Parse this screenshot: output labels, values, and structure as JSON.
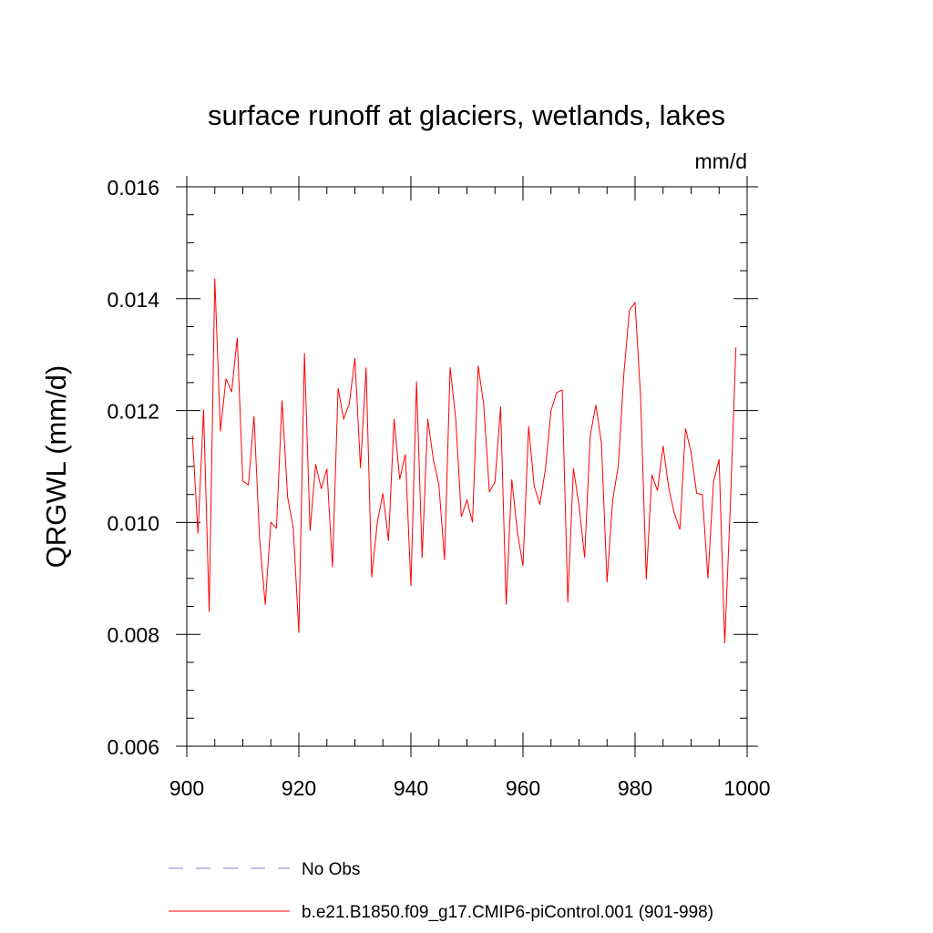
{
  "chart_data": {
    "type": "line",
    "title": "surface runoff at glaciers, wetlands, lakes",
    "units": "mm/d",
    "ylabel": "QRGWL  (mm/d)",
    "xlabel": "",
    "xlim": [
      900,
      1000
    ],
    "ylim": [
      0.006,
      0.016
    ],
    "x_ticks": [
      900,
      920,
      940,
      960,
      980,
      1000
    ],
    "x_tick_labels": [
      "900",
      "920",
      "940",
      "960",
      "980",
      "1000"
    ],
    "y_ticks": [
      0.006,
      0.008,
      0.01,
      0.012,
      0.014,
      0.016
    ],
    "y_tick_labels": [
      "0.006",
      "0.008",
      "0.010",
      "0.012",
      "0.014",
      "0.016"
    ],
    "grid": false,
    "legend_position": "bottom",
    "legend": [
      {
        "label": "No Obs",
        "color": "#8a7fd0",
        "style": "dashed"
      },
      {
        "label": "b.e21.B1850.f09_g17.CMIP6-piControl.001 (901-998)",
        "color": "#ff0000",
        "style": "solid"
      }
    ],
    "series": [
      {
        "name": "b.e21.B1850.f09_g17.CMIP6-piControl.001 (901-998)",
        "color": "#ff0000",
        "x": [
          901,
          902,
          903,
          904,
          905,
          906,
          907,
          908,
          909,
          910,
          911,
          912,
          913,
          914,
          915,
          916,
          917,
          918,
          919,
          920,
          921,
          922,
          923,
          924,
          925,
          926,
          927,
          928,
          929,
          930,
          931,
          932,
          933,
          934,
          935,
          936,
          937,
          938,
          939,
          940,
          941,
          942,
          943,
          944,
          945,
          946,
          947,
          948,
          949,
          950,
          951,
          952,
          953,
          954,
          955,
          956,
          957,
          958,
          959,
          960,
          961,
          962,
          963,
          964,
          965,
          966,
          967,
          968,
          969,
          970,
          971,
          972,
          973,
          974,
          975,
          976,
          977,
          978,
          979,
          980,
          981,
          982,
          983,
          984,
          985,
          986,
          987,
          988,
          989,
          990,
          991,
          992,
          993,
          994,
          995,
          996,
          997,
          998
        ],
        "values": [
          0.01155,
          0.0098,
          0.01202,
          0.0084,
          0.01436,
          0.01163,
          0.01257,
          0.01233,
          0.0133,
          0.01074,
          0.01067,
          0.0119,
          0.0097,
          0.00853,
          0.01,
          0.0099,
          0.01218,
          0.01045,
          0.0099,
          0.00803,
          0.01303,
          0.00985,
          0.01104,
          0.0106,
          0.01096,
          0.0092,
          0.0124,
          0.01185,
          0.01212,
          0.01294,
          0.01097,
          0.01277,
          0.00902,
          0.01,
          0.01052,
          0.00967,
          0.01185,
          0.01077,
          0.01122,
          0.00886,
          0.01252,
          0.00937,
          0.01185,
          0.01113,
          0.01067,
          0.00933,
          0.01277,
          0.01185,
          0.0101,
          0.0104,
          0.01,
          0.0128,
          0.0121,
          0.01055,
          0.01072,
          0.01207,
          0.00853,
          0.01077,
          0.00983,
          0.00922,
          0.01172,
          0.01065,
          0.01032,
          0.01095,
          0.012,
          0.01232,
          0.01237,
          0.00857,
          0.01097,
          0.0103,
          0.00937,
          0.01155,
          0.0121,
          0.01142,
          0.00893,
          0.0104,
          0.011,
          0.01265,
          0.0138,
          0.01393,
          0.01222,
          0.00898,
          0.01085,
          0.01057,
          0.01137,
          0.01062,
          0.01017,
          0.00987,
          0.01168,
          0.01125,
          0.01052,
          0.0105,
          0.009,
          0.01072,
          0.01113,
          0.00784,
          0.0103,
          0.01313
        ]
      }
    ]
  }
}
